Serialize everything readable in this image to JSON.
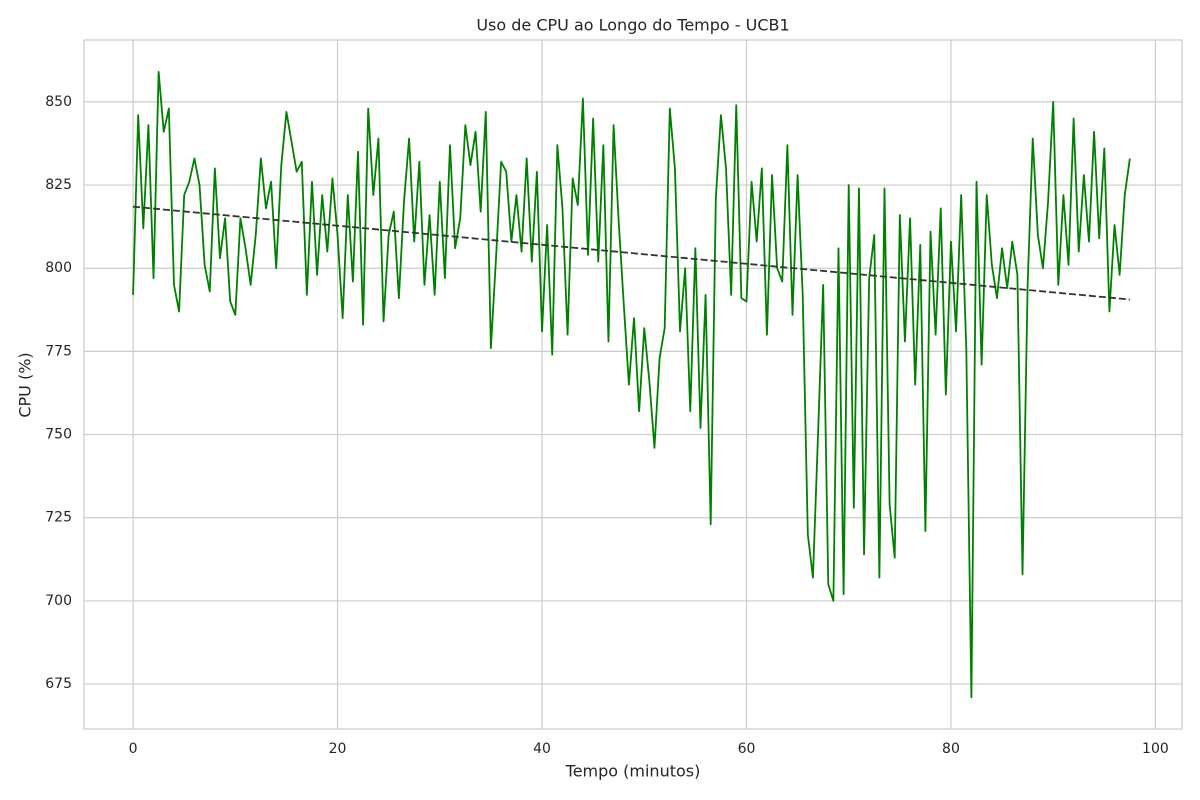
{
  "chart_data": {
    "type": "line",
    "title": "Uso de CPU ao Longo do Tempo - UCB1",
    "xlabel": "Tempo (minutos)",
    "ylabel": "CPU (%)",
    "xlim": [
      -4.8,
      102.6
    ],
    "ylim": [
      661.5,
      868.6
    ],
    "xticks": [
      0,
      20,
      40,
      60,
      80,
      100
    ],
    "yticks": [
      675,
      700,
      725,
      750,
      775,
      800,
      825,
      850
    ],
    "grid": true,
    "series": [
      {
        "color": "#008000",
        "style": "solid",
        "x": [
          0,
          0.5,
          1,
          1.5,
          2,
          2.5,
          3,
          3.5,
          4,
          4.5,
          5,
          5.5,
          6,
          6.5,
          7,
          7.5,
          8,
          8.5,
          9,
          9.5,
          10,
          10.5,
          11,
          11.5,
          12,
          12.5,
          13,
          13.5,
          14,
          14.5,
          15,
          15.5,
          16,
          16.5,
          17,
          17.5,
          18,
          18.5,
          19,
          19.5,
          20,
          20.5,
          21,
          21.5,
          22,
          22.5,
          23,
          23.5,
          24,
          24.5,
          25,
          25.5,
          26,
          26.5,
          27,
          27.5,
          28,
          28.5,
          29,
          29.5,
          30,
          30.5,
          31,
          31.5,
          32,
          32.5,
          33,
          33.5,
          34,
          34.5,
          35,
          35.5,
          36,
          36.5,
          37,
          37.5,
          38,
          38.5,
          39,
          39.5,
          40,
          40.5,
          41,
          41.5,
          42,
          42.5,
          43,
          43.5,
          44,
          44.5,
          45,
          45.5,
          46,
          46.5,
          47,
          47.5,
          48,
          48.5,
          49,
          49.5,
          50,
          50.5,
          51,
          51.5,
          52,
          52.5,
          53,
          53.5,
          54,
          54.5,
          55,
          55.5,
          56,
          56.5,
          57,
          57.5,
          58,
          58.5,
          59,
          59.5,
          60,
          60.5,
          61,
          61.5,
          62,
          62.5,
          63,
          63.5,
          64,
          64.5,
          65,
          65.5,
          66,
          66.5,
          67,
          67.5,
          68,
          68.5,
          69,
          69.5,
          70,
          70.5,
          71,
          71.5,
          72,
          72.5,
          73,
          73.5,
          74,
          74.5,
          75,
          75.5,
          76,
          76.5,
          77,
          77.5,
          78,
          78.5,
          79,
          79.5,
          80,
          80.5,
          81,
          81.5,
          82,
          82.5,
          83,
          83.5,
          84,
          84.5,
          85,
          85.5,
          86,
          86.5,
          87,
          87.5,
          88,
          88.5,
          89,
          89.5,
          90,
          90.5,
          91,
          91.5,
          92,
          92.5,
          93,
          93.5,
          94,
          94.5,
          95,
          95.5,
          96,
          96.5,
          97,
          97.5
        ],
        "values": [
          792,
          846,
          812,
          843,
          797,
          859,
          841,
          848,
          795,
          787,
          822,
          826,
          833,
          825,
          801,
          793,
          830,
          803,
          815,
          790,
          786,
          815,
          806,
          795,
          810,
          833,
          818,
          826,
          800,
          831,
          847,
          838,
          829,
          832,
          792,
          826,
          798,
          822,
          805,
          827,
          810,
          785,
          822,
          796,
          835,
          783,
          848,
          822,
          839,
          784,
          810,
          817,
          791,
          820,
          839,
          808,
          832,
          795,
          816,
          792,
          826,
          797,
          837,
          806,
          815,
          843,
          831,
          841,
          817,
          847,
          776,
          803,
          832,
          829,
          808,
          822,
          805,
          833,
          802,
          829,
          781,
          813,
          774,
          837,
          818,
          780,
          827,
          819,
          851,
          804,
          845,
          802,
          837,
          778,
          843,
          814,
          789,
          765,
          785,
          757,
          782,
          766,
          746,
          773,
          782,
          848,
          830,
          781,
          800,
          757,
          806,
          752,
          792,
          723,
          821,
          846,
          830,
          792,
          849,
          791,
          790,
          826,
          808,
          830,
          780,
          828,
          800,
          796,
          837,
          786,
          828,
          792,
          720,
          707,
          750,
          795,
          705,
          700,
          806,
          702,
          825,
          728,
          824,
          714,
          797,
          810,
          707,
          824,
          729,
          713,
          816,
          778,
          815,
          765,
          807,
          721,
          811,
          780,
          818,
          762,
          808,
          781,
          822,
          776,
          671,
          826,
          771,
          822,
          801,
          791,
          806,
          794,
          808,
          798,
          708,
          795,
          839,
          810,
          800,
          820,
          850,
          795,
          822,
          801,
          845,
          805,
          828,
          808,
          841,
          809,
          836,
          787,
          813,
          798,
          822,
          833
        ]
      },
      {
        "color": "#333333",
        "style": "dashed",
        "x": [
          0,
          97.5
        ],
        "values": [
          818.5,
          790.6
        ]
      }
    ]
  }
}
